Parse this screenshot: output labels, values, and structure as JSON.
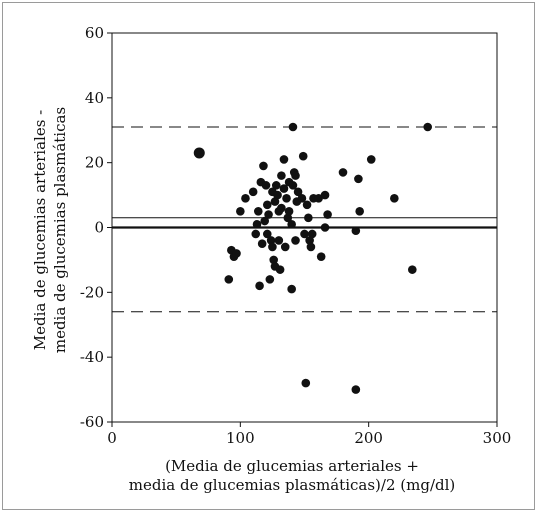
{
  "chart_data": {
    "type": "scatter",
    "xlabel_lines": [
      "(Media de glucemias arteriales +",
      "media de glucemias plasmáticas)/2 (mg/dl)"
    ],
    "ylabel_lines": [
      "Media de glucemias arteriales -",
      "media de glucemias plasmáticas"
    ],
    "xlim": [
      0,
      300
    ],
    "ylim": [
      -60,
      60
    ],
    "xticks": [
      0,
      100,
      200,
      300
    ],
    "yticks": [
      60,
      40,
      20,
      0,
      -20,
      -40,
      -60
    ],
    "grid": false,
    "reference_lines": [
      {
        "y": 0,
        "style": "solid-thick"
      },
      {
        "y": 3,
        "style": "solid-thin"
      },
      {
        "y": 31,
        "style": "dashed"
      },
      {
        "y": -26,
        "style": "dashed"
      }
    ],
    "points": [
      [
        68,
        23
      ],
      [
        91,
        -16
      ],
      [
        93,
        -7
      ],
      [
        95,
        -9
      ],
      [
        97,
        -8
      ],
      [
        100,
        5
      ],
      [
        104,
        9
      ],
      [
        110,
        11
      ],
      [
        112,
        -2
      ],
      [
        113,
        1
      ],
      [
        114,
        5
      ],
      [
        115,
        -18
      ],
      [
        116,
        14
      ],
      [
        117,
        -5
      ],
      [
        118,
        19
      ],
      [
        119,
        2
      ],
      [
        120,
        13
      ],
      [
        121,
        7
      ],
      [
        121,
        -2
      ],
      [
        122,
        4
      ],
      [
        123,
        -16
      ],
      [
        124,
        -4
      ],
      [
        125,
        11
      ],
      [
        125,
        -6
      ],
      [
        126,
        -10
      ],
      [
        127,
        8
      ],
      [
        127,
        -12
      ],
      [
        128,
        13
      ],
      [
        129,
        10
      ],
      [
        130,
        5
      ],
      [
        130,
        -4
      ],
      [
        131,
        -13
      ],
      [
        132,
        16
      ],
      [
        132,
        6
      ],
      [
        134,
        12
      ],
      [
        134,
        21
      ],
      [
        135,
        -6
      ],
      [
        136,
        9
      ],
      [
        137,
        3
      ],
      [
        138,
        14
      ],
      [
        138,
        5
      ],
      [
        140,
        -19
      ],
      [
        140,
        1
      ],
      [
        141,
        13
      ],
      [
        141,
        31
      ],
      [
        142,
        17
      ],
      [
        143,
        16
      ],
      [
        143,
        -4
      ],
      [
        144,
        8
      ],
      [
        145,
        11
      ],
      [
        148,
        9
      ],
      [
        149,
        22
      ],
      [
        150,
        -2
      ],
      [
        151,
        -48
      ],
      [
        152,
        7
      ],
      [
        153,
        3
      ],
      [
        154,
        -4
      ],
      [
        155,
        -6
      ],
      [
        156,
        -2
      ],
      [
        157,
        9
      ],
      [
        161,
        9
      ],
      [
        163,
        -9
      ],
      [
        166,
        0
      ],
      [
        166,
        10
      ],
      [
        168,
        4
      ],
      [
        180,
        17
      ],
      [
        190,
        -1
      ],
      [
        190,
        -50
      ],
      [
        192,
        15
      ],
      [
        193,
        5
      ],
      [
        202,
        21
      ],
      [
        220,
        9
      ],
      [
        234,
        -13
      ],
      [
        246,
        31
      ]
    ],
    "large_points": [
      [
        68,
        23
      ]
    ]
  }
}
